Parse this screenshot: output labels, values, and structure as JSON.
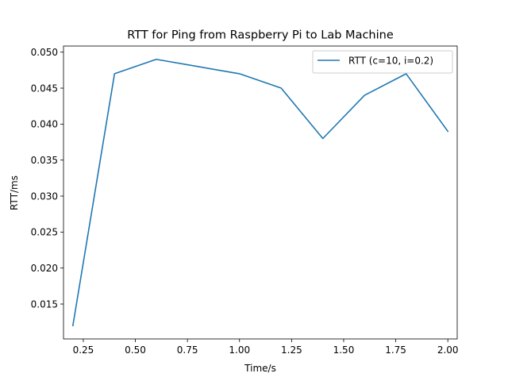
{
  "chart_data": {
    "type": "line",
    "title": "RTT for Ping from Raspberry Pi to Lab Machine",
    "xlabel": "Time/s",
    "ylabel": "RTT/ms",
    "xlim": [
      0.155,
      2.045
    ],
    "ylim": [
      0.01015,
      0.05085
    ],
    "xticks": [
      0.25,
      0.5,
      0.75,
      1.0,
      1.25,
      1.5,
      1.75,
      2.0
    ],
    "xtick_labels": [
      "0.25",
      "0.50",
      "0.75",
      "1.00",
      "1.25",
      "1.50",
      "1.75",
      "2.00"
    ],
    "yticks": [
      0.015,
      0.02,
      0.025,
      0.03,
      0.035,
      0.04,
      0.045,
      0.05
    ],
    "ytick_labels": [
      "0.015",
      "0.020",
      "0.025",
      "0.030",
      "0.035",
      "0.040",
      "0.045",
      "0.050"
    ],
    "grid": false,
    "legend_position": "upper-right",
    "series": [
      {
        "name": "RTT (c=10, i=0.2)",
        "color": "#1f77b4",
        "x": [
          0.2,
          0.4,
          0.6,
          0.8,
          1.0,
          1.2,
          1.4,
          1.6,
          1.8,
          2.0
        ],
        "y": [
          0.012,
          0.047,
          0.049,
          0.048,
          0.047,
          0.045,
          0.038,
          0.044,
          0.047,
          0.039
        ]
      }
    ]
  }
}
